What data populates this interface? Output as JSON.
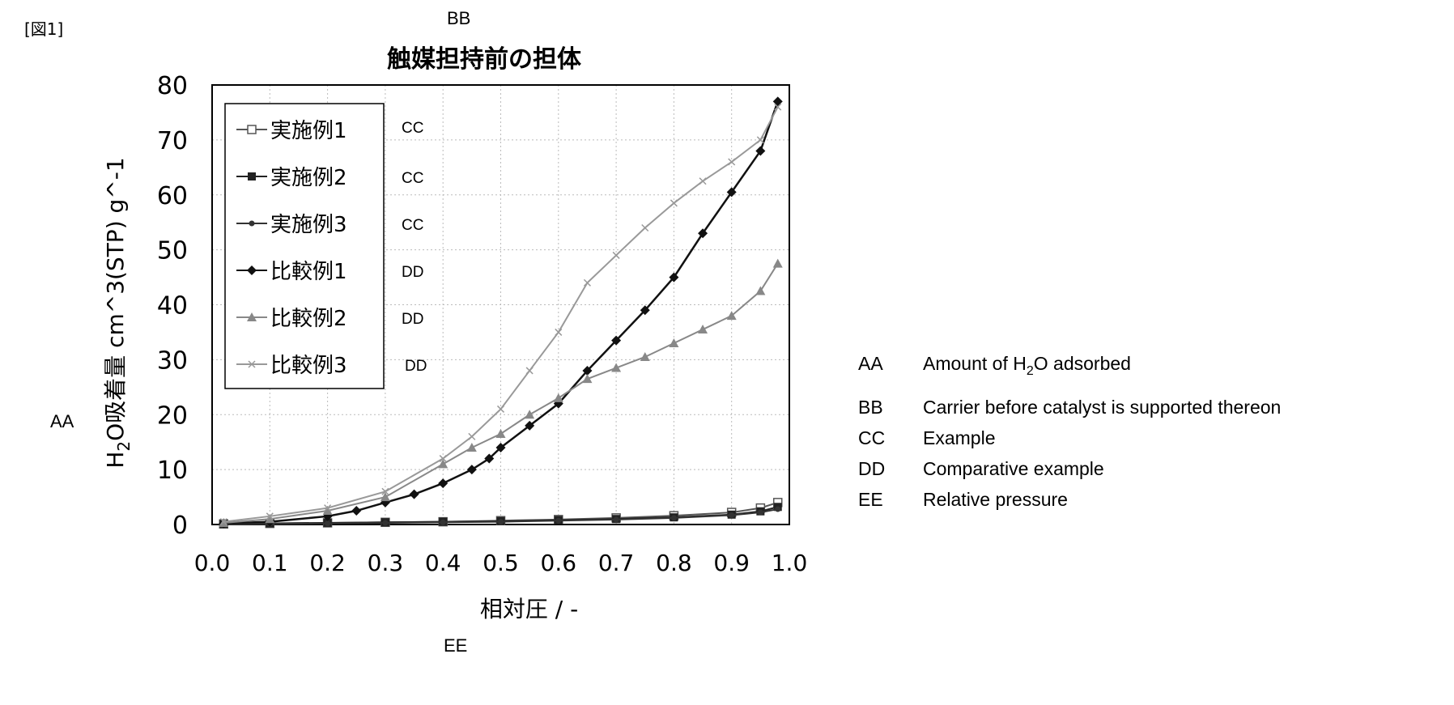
{
  "figure_label": "[図1]",
  "markers": {
    "title_code": "BB",
    "ylabel_code": "AA",
    "xlabel_code": "EE"
  },
  "chart_data": {
    "type": "scatter",
    "mode": "line-with-markers",
    "title": "触媒担持前の担体",
    "xlabel": "相対圧 / -",
    "ylabel_prefix": "H",
    "ylabel_sub": "2",
    "ylabel_suffix": "O吸着量  cm^3(STP) g^-1",
    "xlim": [
      0.0,
      1.0
    ],
    "ylim": [
      0,
      80
    ],
    "xticks": [
      0.0,
      0.1,
      0.2,
      0.3,
      0.4,
      0.5,
      0.6,
      0.7,
      0.8,
      0.9,
      1.0
    ],
    "xtick_labels": [
      "0.0",
      "0.1",
      "0.2",
      "0.3",
      "0.4",
      "0.5",
      "0.6",
      "0.7",
      "0.8",
      "0.9",
      "1.0"
    ],
    "yticks": [
      0,
      10,
      20,
      30,
      40,
      50,
      60,
      70,
      80
    ],
    "ytick_labels": [
      "0",
      "10",
      "20",
      "30",
      "40",
      "50",
      "60",
      "70",
      "80"
    ],
    "grid": true,
    "legend_position": "top-left",
    "series": [
      {
        "name": "実施例1",
        "code": "CC",
        "marker": "square-open",
        "color": "#555555",
        "x": [
          0.02,
          0.1,
          0.2,
          0.3,
          0.4,
          0.5,
          0.6,
          0.7,
          0.8,
          0.9,
          0.95,
          0.98
        ],
        "y": [
          0.1,
          0.2,
          0.3,
          0.4,
          0.5,
          0.7,
          0.9,
          1.2,
          1.6,
          2.2,
          3.0,
          4.0
        ]
      },
      {
        "name": "実施例2",
        "code": "CC",
        "marker": "square-filled",
        "color": "#222222",
        "x": [
          0.02,
          0.1,
          0.2,
          0.3,
          0.4,
          0.5,
          0.6,
          0.7,
          0.8,
          0.9,
          0.95,
          0.98
        ],
        "y": [
          0.1,
          0.2,
          0.3,
          0.4,
          0.5,
          0.6,
          0.8,
          1.0,
          1.3,
          1.8,
          2.4,
          3.2
        ]
      },
      {
        "name": "実施例3",
        "code": "CC",
        "marker": "dot",
        "color": "#333333",
        "x": [
          0.02,
          0.1,
          0.2,
          0.3,
          0.4,
          0.5,
          0.6,
          0.7,
          0.8,
          0.9,
          0.95,
          0.98
        ],
        "y": [
          0.0,
          0.1,
          0.2,
          0.3,
          0.4,
          0.5,
          0.7,
          0.9,
          1.2,
          1.7,
          2.2,
          2.8
        ]
      },
      {
        "name": "比較例1",
        "code": "DD",
        "marker": "diamond-filled",
        "color": "#111111",
        "x": [
          0.02,
          0.1,
          0.2,
          0.25,
          0.3,
          0.35,
          0.4,
          0.45,
          0.48,
          0.5,
          0.55,
          0.6,
          0.65,
          0.7,
          0.75,
          0.8,
          0.85,
          0.9,
          0.95,
          0.98
        ],
        "y": [
          0.2,
          0.5,
          1.5,
          2.5,
          4.0,
          5.5,
          7.5,
          10.0,
          12.0,
          14.0,
          18.0,
          22.0,
          28.0,
          33.5,
          39.0,
          45.0,
          53.0,
          60.5,
          68.0,
          77.0
        ]
      },
      {
        "name": "比較例2",
        "code": "DD",
        "marker": "triangle",
        "color": "#888888",
        "x": [
          0.02,
          0.1,
          0.2,
          0.3,
          0.4,
          0.45,
          0.5,
          0.55,
          0.6,
          0.65,
          0.7,
          0.75,
          0.8,
          0.85,
          0.9,
          0.95,
          0.98
        ],
        "y": [
          0.3,
          1.0,
          2.5,
          5.0,
          11.0,
          14.0,
          16.5,
          20.0,
          23.0,
          26.5,
          28.5,
          30.5,
          33.0,
          35.5,
          38.0,
          42.5,
          47.5
        ]
      },
      {
        "name": "比較例3",
        "code": "DD",
        "marker": "x-light",
        "color": "#999999",
        "x": [
          0.02,
          0.1,
          0.2,
          0.3,
          0.4,
          0.45,
          0.5,
          0.55,
          0.6,
          0.65,
          0.7,
          0.75,
          0.8,
          0.85,
          0.9,
          0.95,
          0.98
        ],
        "y": [
          0.5,
          1.5,
          3.0,
          6.0,
          12.0,
          16.0,
          21.0,
          28.0,
          35.0,
          44.0,
          49.0,
          54.0,
          58.5,
          62.5,
          66.0,
          70.0,
          76.0
        ]
      }
    ]
  },
  "glossary": [
    {
      "code": "AA",
      "desc_prefix": "Amount of H",
      "desc_sub": "2",
      "desc_suffix": "O adsorbed"
    },
    {
      "code": "BB",
      "desc_prefix": "Carrier before catalyst is supported thereon",
      "desc_sub": "",
      "desc_suffix": ""
    },
    {
      "code": "CC",
      "desc_prefix": "Example",
      "desc_sub": "",
      "desc_suffix": ""
    },
    {
      "code": "DD",
      "desc_prefix": "Comparative example",
      "desc_sub": "",
      "desc_suffix": ""
    },
    {
      "code": "EE",
      "desc_prefix": "Relative pressure",
      "desc_sub": "",
      "desc_suffix": ""
    }
  ]
}
